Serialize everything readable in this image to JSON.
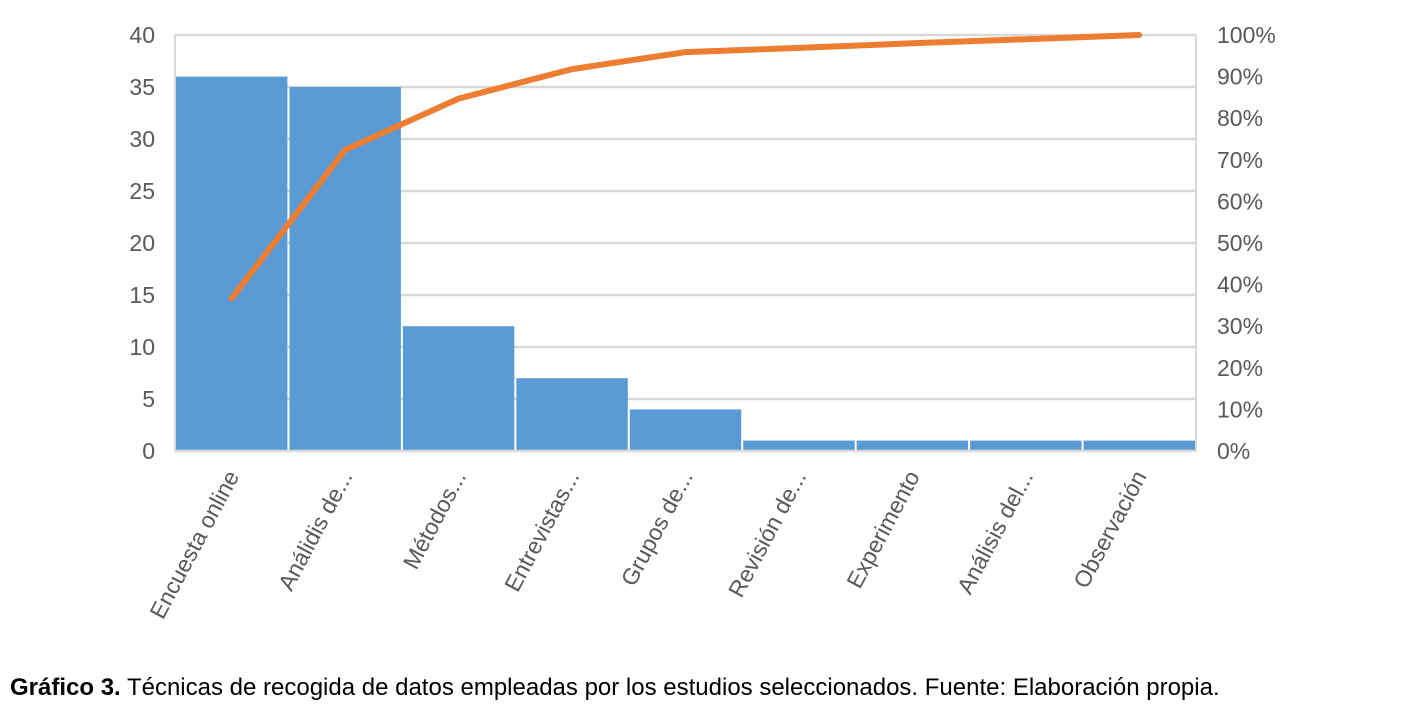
{
  "caption": {
    "label": "Gráfico 3.",
    "text": " Técnicas de recogida de datos empleadas por los estudios seleccionados. Fuente: Elaboración propia."
  },
  "chart_data": {
    "type": "bar",
    "categories": [
      "Encuesta online",
      "Análidis de...",
      "Métodos...",
      "Entrevistas...",
      "Grupos de...",
      "Revisión de...",
      "Experimento",
      "Análisis del...",
      "Observación"
    ],
    "series": [
      {
        "type": "bar",
        "axis": "left",
        "color": "#5B9BD5",
        "values": [
          36,
          35,
          12,
          7,
          4,
          1,
          1,
          1,
          1
        ]
      },
      {
        "type": "line",
        "axis": "right",
        "color": "#ED7D31",
        "values": [
          36.7,
          72.4,
          84.7,
          91.8,
          95.9,
          96.9,
          98.0,
          99.0,
          100.0
        ]
      }
    ],
    "ylim": [
      0,
      40
    ],
    "yticks": [
      "0",
      "5",
      "10",
      "15",
      "20",
      "25",
      "30",
      "35",
      "40"
    ],
    "y2lim": [
      0,
      100
    ],
    "y2ticks": [
      "0%",
      "10%",
      "20%",
      "30%",
      "40%",
      "50%",
      "60%",
      "70%",
      "80%",
      "90%",
      "100%"
    ],
    "grid": true,
    "legend": "none",
    "colors": {
      "gridline": "#D9D9D9",
      "text": "#595959"
    }
  }
}
